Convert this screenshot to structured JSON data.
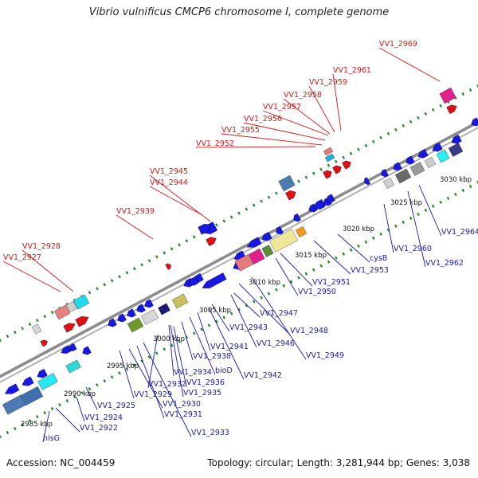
{
  "title": "Vibrio vulnificus CMCP6 chromosome I, complete genome",
  "footer": {
    "accession_label": "Accession: NC_004459",
    "summary": "Topology: circular; Length: 3,281,944 bp; Genes: 3,038"
  },
  "colors": {
    "backbone": "#8c8c8c",
    "tick": "#1f8a1f",
    "forward_label": "#d01818",
    "reverse_label": "#1a1aa8",
    "gene_blue": "#1818e0",
    "gene_red": "#e01010"
  },
  "scale_labels": [
    "2985 kbp",
    "2990 kbp",
    "2995 kbp",
    "3000 kbp",
    "3005 kbp",
    "3010 kbp",
    "3015 kbp",
    "3020 kbp",
    "3025 kbp",
    "3030 kbp"
  ],
  "forward_labels": [
    "VV1_2927",
    "VV1_2928",
    "VV1_2939",
    "VV1_2944",
    "VV1_2945",
    "VV1_2952",
    "VV1_2955",
    "VV1_2956",
    "VV1_2957",
    "VV1_2958",
    "VV1_2959",
    "VV1_2961",
    "VV1_2969"
  ],
  "reverse_labels": [
    "hisG",
    "VV1_2922",
    "VV1_2924",
    "VV1_2925",
    "VV1_2929",
    "VV1_2930",
    "VV1_2931",
    "VV1_2933",
    "VV1_2932",
    "VV1_2934",
    "VV1_2935",
    "VV1_2936",
    "VV1_2938",
    "bioD",
    "VV1_2941",
    "VV1_2942",
    "VV1_2943",
    "VV1_2946",
    "VV1_2947",
    "VV1_2948",
    "VV1_2949",
    "VV1_2950",
    "VV1_2951",
    "VV1_2953",
    "cysB",
    "VV1_2960",
    "VV1_2962",
    "VV1_2964"
  ]
}
